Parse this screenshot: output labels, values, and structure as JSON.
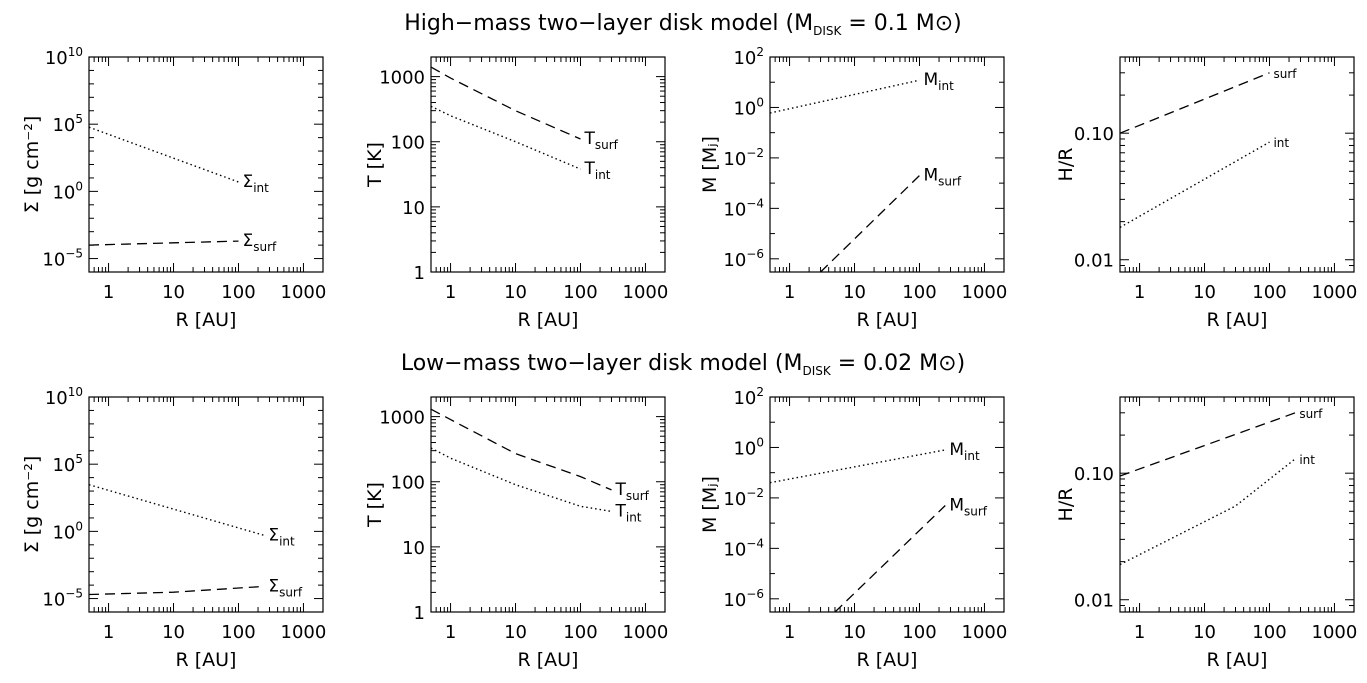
{
  "figure": {
    "rows": [
      {
        "title": {
          "main": "High−mass two−layer disk model (M",
          "sub": "DISK",
          "rest": " = 0.1 M",
          "sun": "⊙",
          "close": ")"
        },
        "panels": [
          "sigma",
          "temperature",
          "mass",
          "aspect"
        ]
      },
      {
        "title": {
          "main": "Low−mass two−layer disk model (M",
          "sub": "DISK",
          "rest": " = 0.02 M",
          "sun": "⊙",
          "close": ")"
        },
        "panels": [
          "sigma",
          "temperature",
          "mass",
          "aspect"
        ]
      }
    ]
  },
  "chart_data": [
    {
      "type": "line",
      "row": "high-mass",
      "panel": "sigma",
      "xlabel": "R [AU]",
      "ylabel": "Σ [g cm⁻²]",
      "xscale": "log",
      "yscale": "log",
      "xlim": [
        0.5,
        2000
      ],
      "ylim": [
        1e-06,
        10000000000.0
      ],
      "xticks": [
        "1",
        "10",
        "100",
        "1000"
      ],
      "yticks": [
        "10⁻⁵",
        "10⁰",
        "10⁵",
        "10¹⁰"
      ],
      "series": [
        {
          "name": "Σint",
          "label": "Σ",
          "label_sub": "int",
          "style": "dotted",
          "x": [
            0.5,
            100
          ],
          "y": [
            60000,
            5
          ]
        },
        {
          "name": "Σsurf",
          "label": "Σ",
          "label_sub": "surf",
          "style": "dashed",
          "x": [
            0.5,
            100
          ],
          "y": [
            0.0001,
            0.0002
          ]
        }
      ]
    },
    {
      "type": "line",
      "row": "high-mass",
      "panel": "temperature",
      "xlabel": "R [AU]",
      "ylabel": "T [K]",
      "xscale": "log",
      "yscale": "log",
      "xlim": [
        0.5,
        2000
      ],
      "ylim": [
        1,
        2000
      ],
      "xticks": [
        "1",
        "10",
        "100",
        "1000"
      ],
      "yticks": [
        "1",
        "10",
        "100",
        "1000"
      ],
      "series": [
        {
          "name": "Tsurf",
          "label": "T",
          "label_sub": "surf",
          "style": "dashed",
          "x": [
            0.5,
            1,
            10,
            100
          ],
          "y": [
            1400,
            950,
            300,
            110
          ]
        },
        {
          "name": "Tint",
          "label": "T",
          "label_sub": "int",
          "style": "dotted",
          "x": [
            0.5,
            1,
            10,
            100
          ],
          "y": [
            350,
            250,
            100,
            38
          ]
        }
      ]
    },
    {
      "type": "line",
      "row": "high-mass",
      "panel": "mass",
      "xlabel": "R [AU]",
      "ylabel": "M [Mⱼ]",
      "xscale": "log",
      "yscale": "log",
      "xlim": [
        0.5,
        2000
      ],
      "ylim": [
        3e-07,
        100
      ],
      "xticks": [
        "1",
        "10",
        "100",
        "1000"
      ],
      "yticks": [
        "10⁻⁶",
        "10⁻⁴",
        "10⁻²",
        "10⁰",
        "10²"
      ],
      "series": [
        {
          "name": "Mint",
          "label": "M",
          "label_sub": "int",
          "style": "dotted",
          "x": [
            0.5,
            100
          ],
          "y": [
            0.6,
            12
          ]
        },
        {
          "name": "Msurf",
          "label": "M",
          "label_sub": "surf",
          "style": "dashed",
          "x": [
            3,
            100
          ],
          "y": [
            3e-07,
            0.002
          ]
        }
      ]
    },
    {
      "type": "line",
      "row": "high-mass",
      "panel": "aspect",
      "xlabel": "R [AU]",
      "ylabel": "H/R",
      "xscale": "log",
      "yscale": "log",
      "xlim": [
        0.5,
        2000
      ],
      "ylim": [
        0.008,
        0.4
      ],
      "xticks": [
        "1",
        "10",
        "100",
        "1000"
      ],
      "yticks": [
        "0.01",
        "0.10"
      ],
      "series": [
        {
          "name": "surf",
          "label": "",
          "label_sub": "surf",
          "style": "dashed",
          "x": [
            0.5,
            100
          ],
          "y": [
            0.1,
            0.3
          ]
        },
        {
          "name": "int",
          "label": "",
          "label_sub": "int",
          "style": "dotted",
          "x": [
            0.5,
            100
          ],
          "y": [
            0.018,
            0.085
          ]
        }
      ]
    },
    {
      "type": "line",
      "row": "low-mass",
      "panel": "sigma",
      "xlabel": "R [AU]",
      "ylabel": "Σ [g cm⁻²]",
      "xscale": "log",
      "yscale": "log",
      "xlim": [
        0.5,
        2000
      ],
      "ylim": [
        1e-06,
        10000000000.0
      ],
      "xticks": [
        "1",
        "10",
        "100",
        "1000"
      ],
      "yticks": [
        "10⁻⁵",
        "10⁰",
        "10⁵",
        "10¹⁰"
      ],
      "series": [
        {
          "name": "Σint",
          "label": "Σ",
          "label_sub": "int",
          "style": "dotted",
          "x": [
            0.5,
            250
          ],
          "y": [
            3000,
            0.5
          ]
        },
        {
          "name": "Σsurf",
          "label": "Σ",
          "label_sub": "surf",
          "style": "dashed",
          "x": [
            0.5,
            10,
            250
          ],
          "y": [
            2e-05,
            3e-05,
            8e-05
          ]
        }
      ]
    },
    {
      "type": "line",
      "row": "low-mass",
      "panel": "temperature",
      "xlabel": "R [AU]",
      "ylabel": "T [K]",
      "xscale": "log",
      "yscale": "log",
      "xlim": [
        0.5,
        2000
      ],
      "ylim": [
        1,
        2000
      ],
      "xticks": [
        "1",
        "10",
        "100",
        "1000"
      ],
      "yticks": [
        "1",
        "10",
        "100",
        "1000"
      ],
      "series": [
        {
          "name": "Tsurf",
          "label": "T",
          "label_sub": "surf",
          "style": "dashed",
          "x": [
            0.5,
            1,
            10,
            100,
            300
          ],
          "y": [
            1300,
            900,
            270,
            120,
            75
          ]
        },
        {
          "name": "Tint",
          "label": "T",
          "label_sub": "int",
          "style": "dotted",
          "x": [
            0.5,
            1,
            10,
            100,
            300
          ],
          "y": [
            330,
            230,
            90,
            42,
            35
          ]
        }
      ]
    },
    {
      "type": "line",
      "row": "low-mass",
      "panel": "mass",
      "xlabel": "R [AU]",
      "ylabel": "M [Mⱼ]",
      "xscale": "log",
      "yscale": "log",
      "xlim": [
        0.5,
        2000
      ],
      "ylim": [
        3e-07,
        100
      ],
      "xticks": [
        "1",
        "10",
        "100",
        "1000"
      ],
      "yticks": [
        "10⁻⁶",
        "10⁻⁴",
        "10⁻²",
        "10⁰",
        "10²"
      ],
      "series": [
        {
          "name": "Mint",
          "label": "M",
          "label_sub": "int",
          "style": "dotted",
          "x": [
            0.5,
            250
          ],
          "y": [
            0.04,
            0.8
          ]
        },
        {
          "name": "Msurf",
          "label": "M",
          "label_sub": "surf",
          "style": "dashed",
          "x": [
            5,
            250
          ],
          "y": [
            3e-07,
            0.005
          ]
        }
      ]
    },
    {
      "type": "line",
      "row": "low-mass",
      "panel": "aspect",
      "xlabel": "R [AU]",
      "ylabel": "H/R",
      "xscale": "log",
      "yscale": "log",
      "xlim": [
        0.5,
        2000
      ],
      "ylim": [
        0.008,
        0.4
      ],
      "xticks": [
        "1",
        "10",
        "100",
        "1000"
      ],
      "yticks": [
        "0.01",
        "0.10"
      ],
      "series": [
        {
          "name": "surf",
          "label": "",
          "label_sub": "surf",
          "style": "dashed",
          "x": [
            0.5,
            250
          ],
          "y": [
            0.095,
            0.3
          ]
        },
        {
          "name": "int",
          "label": "",
          "label_sub": "int",
          "style": "dotted",
          "x": [
            0.5,
            30,
            250
          ],
          "y": [
            0.019,
            0.055,
            0.13
          ]
        }
      ]
    }
  ]
}
